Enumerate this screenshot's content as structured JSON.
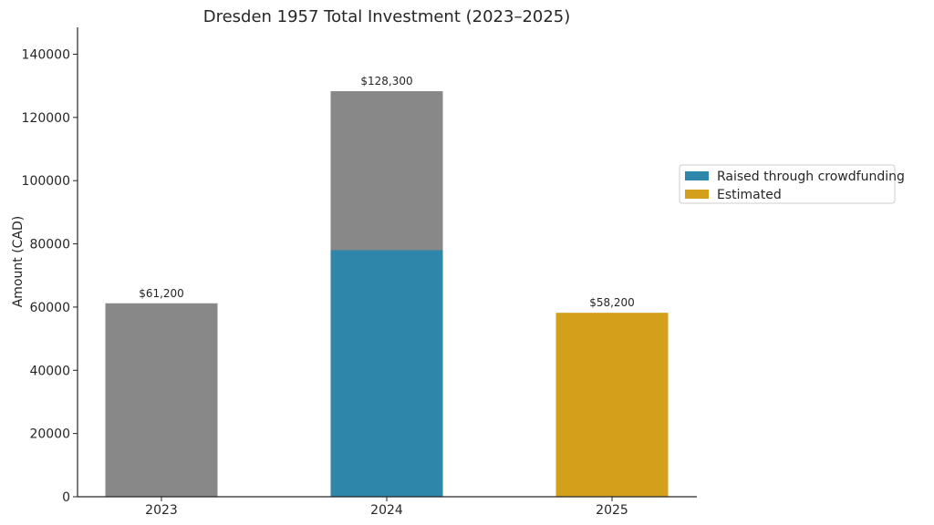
{
  "chart_data": {
    "type": "bar",
    "stacked": true,
    "title": "Dresden 1957 Total Investment (2023–2025)",
    "xlabel": "",
    "ylabel": "Amount (CAD)",
    "ylim": [
      0,
      148500
    ],
    "yticks": [
      0,
      20000,
      40000,
      60000,
      80000,
      100000,
      120000,
      140000
    ],
    "categories": [
      "2023",
      "2024",
      "2025"
    ],
    "series": [
      {
        "key": "base",
        "name": "",
        "color": "#888888",
        "values": [
          61200,
          0,
          0
        ]
      },
      {
        "key": "crowdfunding",
        "name": "Raised through crowdfunding",
        "color": "#2e86ab",
        "values": [
          0,
          78000,
          0
        ]
      },
      {
        "key": "crowdfunding_other",
        "name": "",
        "color": "#888888",
        "values": [
          0,
          50300,
          0
        ]
      },
      {
        "key": "estimated",
        "name": "Estimated",
        "color": "#d4a01c",
        "values": [
          0,
          0,
          58200
        ]
      }
    ],
    "totals": [
      61200,
      128300,
      58200
    ],
    "data_labels": [
      "$61,200",
      "$128,300",
      "$58,200"
    ],
    "legend": {
      "placement": "center-right",
      "entries": [
        {
          "label": "Raised through crowdfunding",
          "color": "#2e86ab"
        },
        {
          "label": "Estimated",
          "color": "#d4a01c"
        }
      ]
    },
    "grid": false
  }
}
